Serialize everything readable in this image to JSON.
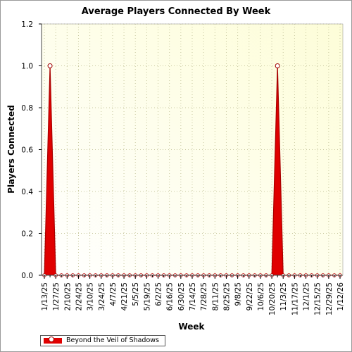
{
  "chart_data": {
    "type": "area",
    "title": "Average Players Connected By Week",
    "xlabel": "Week",
    "ylabel": "Players Connected",
    "ylim": [
      0,
      1.2
    ],
    "y_ticks": [
      "0.0",
      "0.2",
      "0.4",
      "0.6",
      "0.8",
      "1.0",
      "1.2"
    ],
    "x_tick_labels": [
      "1/13/25",
      "1/27/25",
      "2/10/25",
      "2/24/25",
      "3/10/25",
      "3/24/25",
      "4/7/25",
      "4/21/25",
      "5/5/25",
      "5/19/25",
      "6/2/25",
      "6/16/25",
      "6/30/25",
      "7/14/25",
      "7/28/25",
      "8/11/25",
      "8/25/25",
      "9/8/25",
      "9/22/25",
      "10/6/25",
      "10/20/25",
      "11/3/25",
      "11/17/25",
      "12/1/25",
      "12/15/25",
      "12/29/25",
      "1/12/26"
    ],
    "grid": true,
    "legend_position": "bottom-left",
    "colors": {
      "series": "#e00000",
      "plot_background": "#fdfdd8"
    },
    "series": [
      {
        "name": "Beyond the Veil of Shadows",
        "x": [
          "1/13/25",
          "1/20/25",
          "1/27/25",
          "2/3/25",
          "2/10/25",
          "2/17/25",
          "2/24/25",
          "3/3/25",
          "3/10/25",
          "3/17/25",
          "3/24/25",
          "3/31/25",
          "4/7/25",
          "4/14/25",
          "4/21/25",
          "4/28/25",
          "5/5/25",
          "5/12/25",
          "5/19/25",
          "5/26/25",
          "6/2/25",
          "6/9/25",
          "6/16/25",
          "6/23/25",
          "6/30/25",
          "7/7/25",
          "7/14/25",
          "7/21/25",
          "7/28/25",
          "8/4/25",
          "8/11/25",
          "8/18/25",
          "8/25/25",
          "9/1/25",
          "9/8/25",
          "9/15/25",
          "9/22/25",
          "9/29/25",
          "10/6/25",
          "10/13/25",
          "10/20/25",
          "10/27/25",
          "11/3/25",
          "11/10/25",
          "11/17/25",
          "11/24/25",
          "12/1/25",
          "12/8/25",
          "12/15/25",
          "12/22/25",
          "12/29/25",
          "1/5/26",
          "1/12/26"
        ],
        "values": [
          0,
          1,
          0,
          0,
          0,
          0,
          0,
          0,
          0,
          0,
          0,
          0,
          0,
          0,
          0,
          0,
          0,
          0,
          0,
          0,
          0,
          0,
          0,
          0,
          0,
          0,
          0,
          0,
          0,
          0,
          0,
          0,
          0,
          0,
          0,
          0,
          0,
          0,
          0,
          0,
          0,
          1,
          0,
          0,
          0,
          0,
          0,
          0,
          0,
          0,
          0,
          0,
          0
        ]
      }
    ]
  }
}
